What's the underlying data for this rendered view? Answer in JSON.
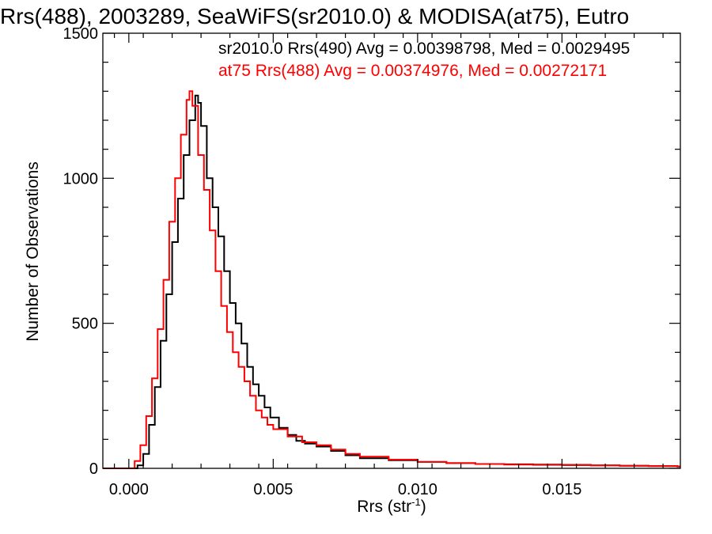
{
  "chart_data": {
    "type": "line",
    "title": "Rrs(488), 2003289, SeaWiFS(sr2010.0) & MODISA(at75), Eutro",
    "xlabel": "Rrs (str",
    "xlabel_sup": "-1",
    "xlabel_tail": ")",
    "ylabel": "Number of Observations",
    "xlim": [
      -0.0009,
      0.0191
    ],
    "ylim": [
      0,
      1500
    ],
    "x_ticks": [
      {
        "value": 0.0,
        "label": "0.000"
      },
      {
        "value": 0.005,
        "label": "0.005"
      },
      {
        "value": 0.01,
        "label": "0.010"
      },
      {
        "value": 0.015,
        "label": "0.015"
      }
    ],
    "y_ticks": [
      {
        "value": 0,
        "label": "0"
      },
      {
        "value": 500,
        "label": "500"
      },
      {
        "value": 1000,
        "label": "1000"
      },
      {
        "value": 1500,
        "label": "1500"
      }
    ],
    "grid": false,
    "legend_position": "top-right",
    "series": [
      {
        "name": "sr2010.0 Rrs(490) Avg = 0.00398798, Med = 0.0029495",
        "color": "#000000",
        "step": true,
        "x": [
          -0.0009,
          0.0,
          0.0003,
          0.0005,
          0.0007,
          0.0009,
          0.0011,
          0.0013,
          0.0015,
          0.0017,
          0.0019,
          0.0021,
          0.0023,
          0.0024,
          0.0025,
          0.0027,
          0.0029,
          0.0031,
          0.0033,
          0.0035,
          0.0037,
          0.0039,
          0.0041,
          0.0043,
          0.0045,
          0.0047,
          0.0049,
          0.0052,
          0.0055,
          0.0058,
          0.0061,
          0.0065,
          0.007,
          0.0075,
          0.008,
          0.009,
          0.01,
          0.011,
          0.012,
          0.013,
          0.014,
          0.015,
          0.016,
          0.017,
          0.018,
          0.019
        ],
        "y": [
          0,
          0,
          10,
          50,
          150,
          280,
          440,
          600,
          780,
          930,
          1080,
          1200,
          1285,
          1260,
          1180,
          1000,
          900,
          800,
          680,
          570,
          500,
          430,
          350,
          290,
          250,
          210,
          175,
          140,
          115,
          95,
          85,
          75,
          60,
          45,
          35,
          28,
          22,
          18,
          15,
          14,
          13,
          12,
          10,
          9,
          8,
          6
        ]
      },
      {
        "name": "at75 Rrs(488) Avg = 0.00374976, Med = 0.00272171",
        "color": "#ff0000",
        "step": true,
        "x": [
          -0.0009,
          0.0,
          0.0002,
          0.0004,
          0.0006,
          0.0008,
          0.001,
          0.0012,
          0.0014,
          0.0016,
          0.0018,
          0.002,
          0.0021,
          0.0022,
          0.0024,
          0.0026,
          0.0028,
          0.003,
          0.0032,
          0.0034,
          0.0036,
          0.0038,
          0.004,
          0.0042,
          0.0044,
          0.0046,
          0.0048,
          0.005,
          0.0055,
          0.006,
          0.0065,
          0.007,
          0.0075,
          0.008,
          0.009,
          0.01,
          0.011,
          0.012,
          0.013,
          0.014,
          0.015,
          0.016,
          0.017,
          0.018,
          0.019
        ],
        "y": [
          0,
          0,
          25,
          80,
          180,
          310,
          480,
          650,
          850,
          1000,
          1150,
          1270,
          1300,
          1250,
          1080,
          960,
          820,
          680,
          560,
          470,
          400,
          350,
          300,
          250,
          200,
          175,
          150,
          135,
          110,
          90,
          80,
          65,
          50,
          40,
          30,
          22,
          18,
          15,
          13,
          12,
          11,
          10,
          9,
          8,
          6
        ]
      }
    ]
  }
}
